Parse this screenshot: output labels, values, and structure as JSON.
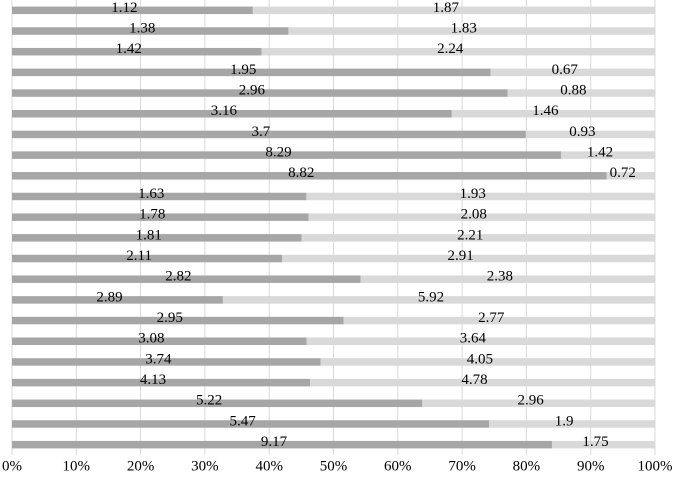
{
  "chart_data": {
    "type": "bar",
    "orientation": "horizontal",
    "stack": "percent",
    "categories": [
      null,
      null,
      null,
      null,
      null,
      null,
      null,
      null,
      null,
      null,
      null,
      null,
      null,
      null,
      null,
      null,
      null,
      null,
      null,
      null,
      null,
      null
    ],
    "series": [
      {
        "color": "#a6a6a6",
        "values": [
          1.12,
          1.38,
          1.42,
          1.95,
          2.96,
          3.16,
          3.7,
          8.29,
          8.82,
          1.63,
          1.78,
          1.81,
          2.11,
          2.82,
          2.89,
          2.95,
          3.08,
          3.74,
          4.13,
          5.22,
          5.47,
          9.17
        ]
      },
      {
        "color": "#d9d9d9",
        "values": [
          1.87,
          1.83,
          2.24,
          0.67,
          0.88,
          1.46,
          0.93,
          1.42,
          0.72,
          1.93,
          2.08,
          2.21,
          2.91,
          2.38,
          5.92,
          2.77,
          3.64,
          4.05,
          4.78,
          2.96,
          1.9,
          1.75
        ]
      }
    ],
    "xlim": [
      0,
      100
    ],
    "xticks": [
      {
        "value": 0,
        "label": "0%"
      },
      {
        "value": 10,
        "label": "10%"
      },
      {
        "value": 20,
        "label": "20%"
      },
      {
        "value": 30,
        "label": "30%"
      },
      {
        "value": 40,
        "label": "40%"
      },
      {
        "value": 50,
        "label": "50%"
      },
      {
        "value": 60,
        "label": "60%"
      },
      {
        "value": 70,
        "label": "70%"
      },
      {
        "value": 80,
        "label": "80%"
      },
      {
        "value": 90,
        "label": "90%"
      },
      {
        "value": 100,
        "label": "100%"
      }
    ],
    "grid": true,
    "data_labels": true
  }
}
